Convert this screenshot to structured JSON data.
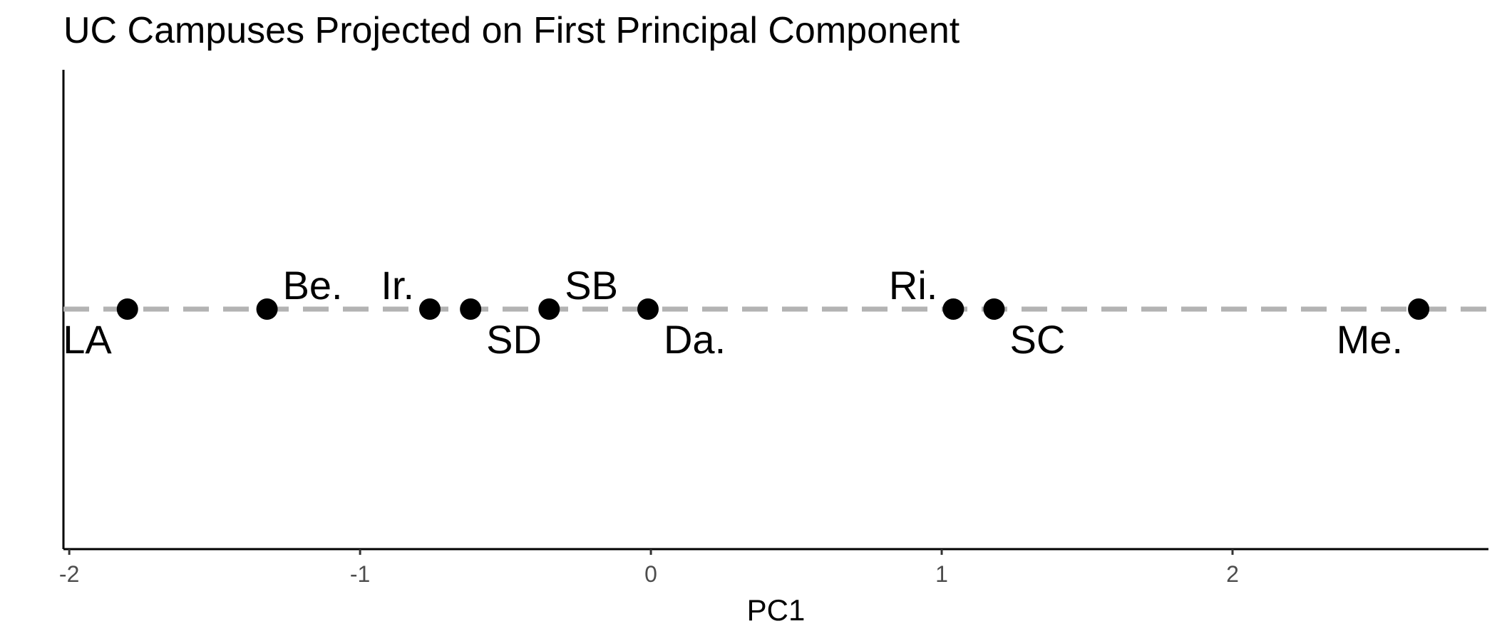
{
  "chart_data": {
    "type": "scatter",
    "title": "UC Campuses Projected on First Principal Component",
    "xlabel": "PC1",
    "ylabel": "",
    "xlim": [
      -2.02,
      2.88
    ],
    "xticks": [
      -2,
      -1,
      0,
      1,
      2
    ],
    "xtick_labels": [
      "-2",
      "-1",
      "0",
      "1",
      "2"
    ],
    "grid": false,
    "legend": "none",
    "reference_line": {
      "y": 0,
      "style": "dashed",
      "color": "#b3b3b3"
    },
    "point_color": "#000000",
    "points": [
      {
        "label": "LA",
        "x": -1.8,
        "y": 0,
        "label_pos": "below-left"
      },
      {
        "label": "Be.",
        "x": -1.32,
        "y": 0,
        "label_pos": "above-right"
      },
      {
        "label": "Ir.",
        "x": -0.76,
        "y": 0,
        "label_pos": "above-left"
      },
      {
        "label": "SD",
        "x": -0.62,
        "y": 0,
        "label_pos": "below-right"
      },
      {
        "label": "SB",
        "x": -0.35,
        "y": 0,
        "label_pos": "above-right"
      },
      {
        "label": "Da.",
        "x": -0.01,
        "y": 0,
        "label_pos": "below-right"
      },
      {
        "label": "Ri.",
        "x": 1.04,
        "y": 0,
        "label_pos": "above-left"
      },
      {
        "label": "SC",
        "x": 1.18,
        "y": 0,
        "label_pos": "below-right"
      },
      {
        "label": "Me.",
        "x": 2.64,
        "y": 0,
        "label_pos": "below-left"
      }
    ]
  }
}
